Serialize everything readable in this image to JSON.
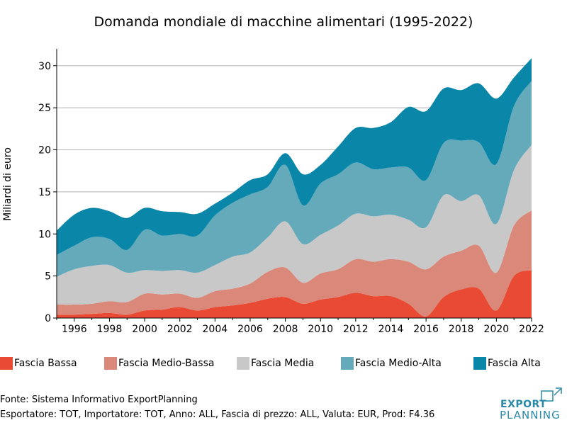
{
  "chart_data": {
    "type": "area",
    "stacked": true,
    "title": "Domanda mondiale di macchine alimentari (1995-2022)",
    "ylabel": "Miliardi di euro",
    "xlabel": "",
    "xlim": [
      1995,
      2022
    ],
    "ylim": [
      0,
      32
    ],
    "xticks": [
      1996,
      1998,
      2000,
      2002,
      2004,
      2006,
      2008,
      2010,
      2012,
      2014,
      2016,
      2018,
      2020,
      2022
    ],
    "yticks": [
      0,
      5,
      10,
      15,
      20,
      25,
      30
    ],
    "grid": "horizontal",
    "legend_position": "bottom",
    "x": [
      1995,
      1996,
      1997,
      1998,
      1999,
      2000,
      2001,
      2002,
      2003,
      2004,
      2005,
      2006,
      2007,
      2008,
      2009,
      2010,
      2011,
      2012,
      2013,
      2014,
      2015,
      2016,
      2017,
      2018,
      2019,
      2020,
      2021,
      2022
    ],
    "series": [
      {
        "name": "Fascia Bassa",
        "color": "#e84a33",
        "values": [
          0.4,
          0.4,
          0.5,
          0.6,
          0.4,
          0.9,
          1.0,
          1.3,
          0.9,
          1.3,
          1.5,
          1.8,
          2.3,
          2.5,
          1.7,
          2.2,
          2.5,
          3.0,
          2.6,
          2.6,
          1.7,
          0.2,
          2.5,
          3.4,
          3.5,
          0.9,
          5.0,
          5.7
        ]
      },
      {
        "name": "Fascia Medio-Bassa",
        "color": "#d9887a",
        "values": [
          1.2,
          1.2,
          1.2,
          1.4,
          1.5,
          2.0,
          1.8,
          1.6,
          1.5,
          1.9,
          2.0,
          2.3,
          3.2,
          3.5,
          2.5,
          3.1,
          3.3,
          4.0,
          4.1,
          4.4,
          5.0,
          5.6,
          4.8,
          4.6,
          5.1,
          4.5,
          6.0,
          7.1
        ]
      },
      {
        "name": "Fascia Media",
        "color": "#c8c8c8",
        "values": [
          3.3,
          4.2,
          4.5,
          4.3,
          3.5,
          2.8,
          2.8,
          2.8,
          3.0,
          3.1,
          3.8,
          3.7,
          4.1,
          5.5,
          4.6,
          4.6,
          5.2,
          5.4,
          5.4,
          5.3,
          5.0,
          5.0,
          7.3,
          5.9,
          6.0,
          5.8,
          6.6,
          7.8
        ]
      },
      {
        "name": "Fascia Medio-Alta",
        "color": "#64aabb",
        "values": [
          2.6,
          2.8,
          3.4,
          3.1,
          2.7,
          4.8,
          4.2,
          4.3,
          4.4,
          5.9,
          6.4,
          6.9,
          6.0,
          6.7,
          4.6,
          6.1,
          6.1,
          6.1,
          5.6,
          5.6,
          6.2,
          5.6,
          6.2,
          7.2,
          6.3,
          7.1,
          7.6,
          7.6
        ]
      },
      {
        "name": "Fascia Alta",
        "color": "#0a87a8",
        "values": [
          2.9,
          3.7,
          3.5,
          3.3,
          3.8,
          2.6,
          2.9,
          2.6,
          2.6,
          1.4,
          1.2,
          1.7,
          1.5,
          1.4,
          3.7,
          2.2,
          3.3,
          4.1,
          4.9,
          5.4,
          7.2,
          8.2,
          6.5,
          6.0,
          7.0,
          7.8,
          3.4,
          2.7
        ]
      }
    ]
  },
  "footer": {
    "source": "Fonte: Sistema Informativo ExportPlanning",
    "filters": "Esportatore: TOT, Importatore: TOT, Anno: ALL, Fascia di prezzo: ALL, Valuta: EUR, Prod: F4.36"
  },
  "logo": {
    "line1": "EXPORT",
    "line2": "PLANNING",
    "color": "#2a88a8"
  }
}
